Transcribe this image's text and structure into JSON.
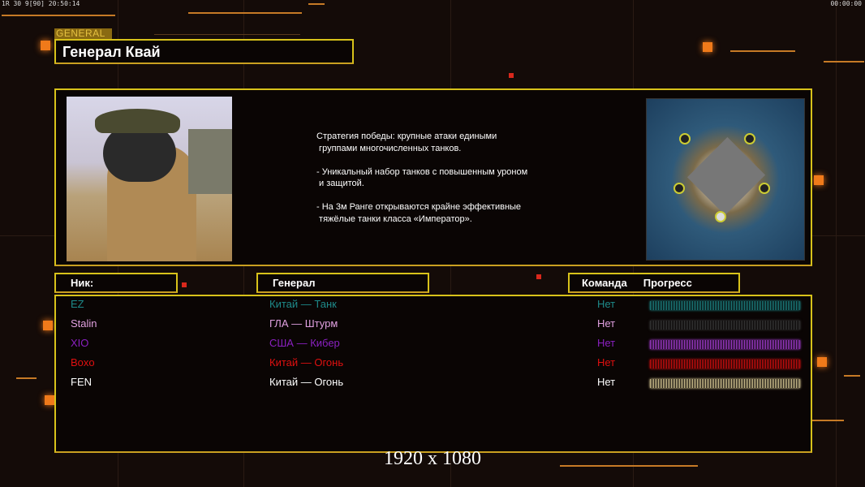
{
  "hud": {
    "left": "1R 30 9[90] 20:50:14",
    "right": "00:00:00"
  },
  "header": {
    "tab_label": "GENERAL",
    "title": "Генерал Квай"
  },
  "description": "Стратегия победы: крупные атаки едиными\n группами многочисленных танков.\n\n- Уникальный набор танков с повышенным уроном\n и защитой.\n\n- На 3м Ранге открываются крайне эффективные\n тяжёлые танки класса «Император».",
  "columns": {
    "nick": "Ник:",
    "general": "Генерал",
    "team": "Команда",
    "progress": "Прогресс"
  },
  "players": [
    {
      "nick": "EZ",
      "general": "Китай — Танк",
      "team": "Нет",
      "color": "#1e8a8a",
      "progress": 100
    },
    {
      "nick": "Stalin",
      "general": "ГЛА — Штурм",
      "team": "Нет",
      "color": "#e0a0e0",
      "bar_color": "#3a3a3a",
      "progress": 100
    },
    {
      "nick": "XIO",
      "general": "США — Кибер",
      "team": "Нет",
      "color": "#8a20c0",
      "bar_color": "#b040e0",
      "progress": 100
    },
    {
      "nick": "Boxo",
      "general": "Китай — Огонь",
      "team": "Нет",
      "color": "#e01010",
      "progress": 100
    },
    {
      "nick": "FEN",
      "general": "Китай — Огонь",
      "team": "Нет",
      "color": "#ffffff",
      "bar_color": "#e8d8a0",
      "progress": 100
    }
  ],
  "resolution": "1920 x 1080",
  "accent": "#d8c21a"
}
